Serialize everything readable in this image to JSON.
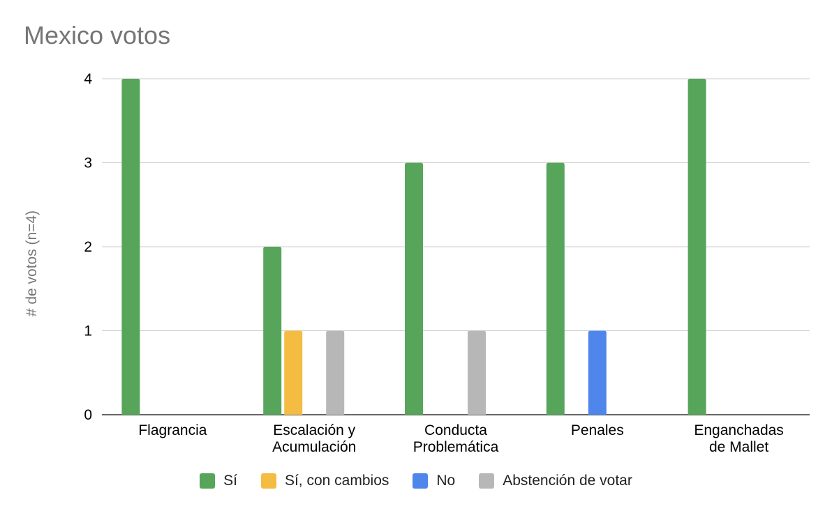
{
  "chart_data": {
    "type": "bar",
    "title": "Mexico votos",
    "ylabel": "# de votos (n=4)",
    "xlabel": "",
    "ylim": [
      0,
      4
    ],
    "yticks": [
      0,
      1,
      2,
      3,
      4
    ],
    "grid": true,
    "legend_position": "bottom",
    "categories": [
      [
        "Flagrancia"
      ],
      [
        "Escalación y",
        "Acumulación"
      ],
      [
        "Conducta",
        "Problemática"
      ],
      [
        "Penales"
      ],
      [
        "Enganchadas",
        "de Mallet"
      ]
    ],
    "series": [
      {
        "name": "Sí",
        "color": "#57a55a",
        "values": [
          4,
          2,
          3,
          3,
          4
        ]
      },
      {
        "name": "Sí, con cambios",
        "color": "#f4bc42",
        "values": [
          0,
          1,
          0,
          0,
          0
        ]
      },
      {
        "name": "No",
        "color": "#4f86ec",
        "values": [
          0,
          0,
          0,
          1,
          0
        ]
      },
      {
        "name": "Abstención de votar",
        "color": "#b7b7b7",
        "values": [
          0,
          1,
          1,
          0,
          0
        ]
      }
    ]
  }
}
